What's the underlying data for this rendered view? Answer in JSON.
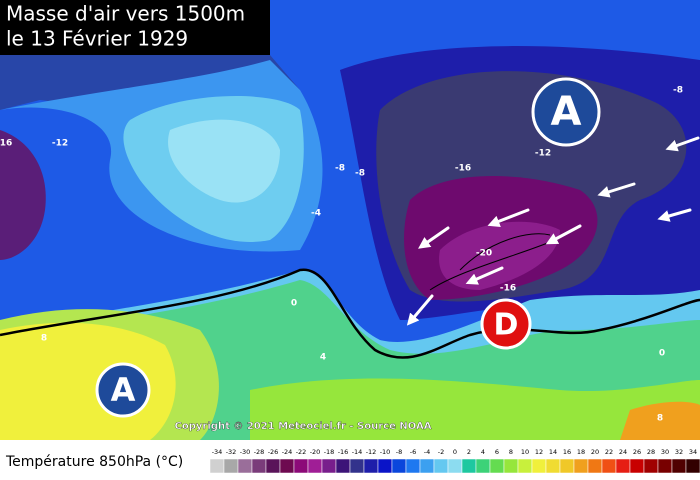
{
  "title": {
    "line1": "Masse d'air vers 1500m",
    "line2": "le 13 Février 1929"
  },
  "pressure_centers": [
    {
      "label": "A"
    },
    {
      "label": "A"
    },
    {
      "label": "D"
    }
  ],
  "contour_labels": [
    "16",
    "-12",
    "-8",
    "-8",
    "-4",
    "0",
    "8",
    "4",
    "-16",
    "-20",
    "-16",
    "-12",
    "-8",
    "0",
    "8"
  ],
  "copyright": "Copyright © 2021 Meteociel.fr - Source NOAA",
  "legend": {
    "label": "Température 850hPa (°C)",
    "ticks": [
      -34,
      -32,
      -30,
      -28,
      -26,
      -24,
      -22,
      -20,
      -18,
      -16,
      -14,
      -12,
      -10,
      -8,
      -6,
      -4,
      -2,
      0,
      2,
      4,
      6,
      8,
      10,
      12,
      14,
      16,
      18,
      20,
      22,
      24,
      26,
      28,
      30,
      32,
      34
    ],
    "colors": [
      "#d0d0d0",
      "#a8a8a8",
      "#9a6e9a",
      "#7a3c7a",
      "#5a145a",
      "#6e0a50",
      "#8c0a78",
      "#a01e96",
      "#781e8c",
      "#3c1478",
      "#32328c",
      "#1e1eaa",
      "#0a14c8",
      "#0a46dc",
      "#1e78f0",
      "#3ca0f0",
      "#64c8f0",
      "#8cdcf0",
      "#1ec8a0",
      "#3cd278",
      "#64dc50",
      "#96e63c",
      "#c8f03c",
      "#f0f03c",
      "#f0dc32",
      "#f0c828",
      "#f0a01e",
      "#f07814",
      "#f05014",
      "#e61e14",
      "#c80000",
      "#a00000",
      "#780000",
      "#500000",
      "#320000"
    ]
  }
}
